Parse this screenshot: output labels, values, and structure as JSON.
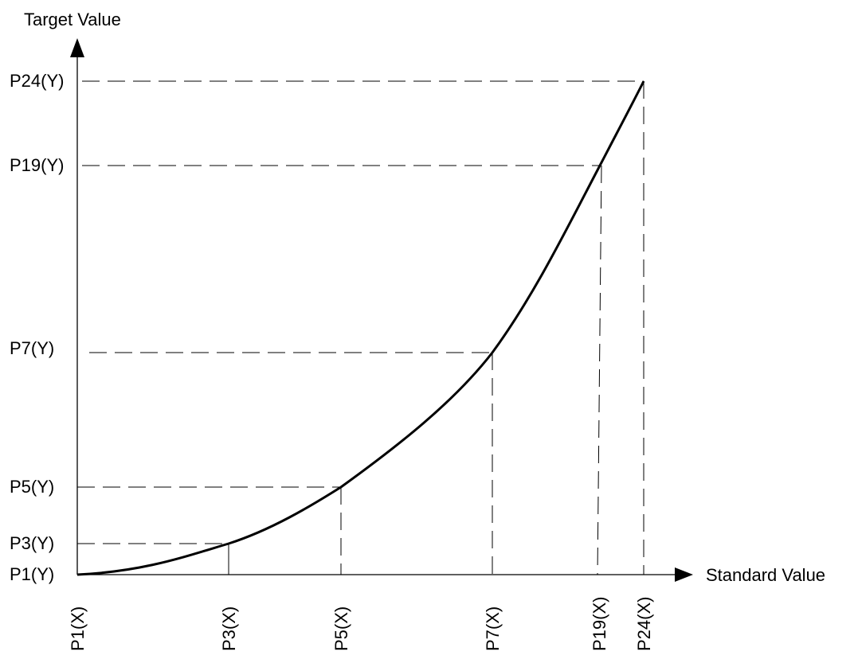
{
  "diagram": {
    "y_axis_title": "Target Value",
    "x_axis_title": "Standard Value",
    "points": [
      {
        "x_label": "P1(X)",
        "y_label": "P1(Y)"
      },
      {
        "x_label": "P3(X)",
        "y_label": "P3(Y)"
      },
      {
        "x_label": "P5(X)",
        "y_label": "P5(Y)"
      },
      {
        "x_label": "P7(X)",
        "y_label": "P7(Y)"
      },
      {
        "x_label": "P19(X)",
        "y_label": "P19(Y)"
      },
      {
        "x_label": "P24(X)",
        "y_label": "P24(Y)"
      }
    ],
    "colors": {
      "line": "#000000",
      "background": "#ffffff"
    }
  }
}
